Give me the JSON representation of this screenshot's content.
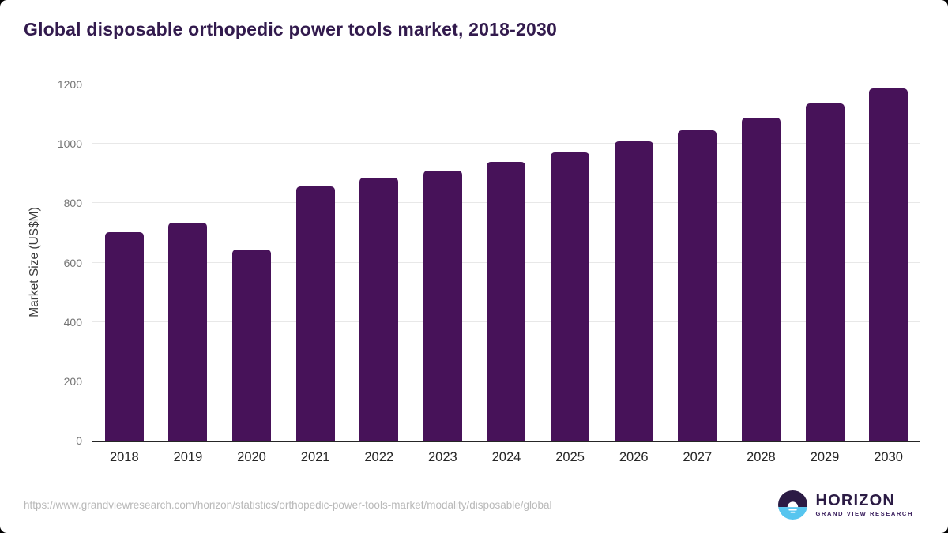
{
  "page": {
    "title": "Global disposable orthopedic power tools market, 2018-2030"
  },
  "chart_data": {
    "type": "bar",
    "title": "Global disposable orthopedic power tools market, 2018-2030",
    "categories": [
      "2018",
      "2019",
      "2020",
      "2021",
      "2022",
      "2023",
      "2024",
      "2025",
      "2026",
      "2027",
      "2028",
      "2029",
      "2030"
    ],
    "values": [
      703,
      735,
      645,
      857,
      886,
      911,
      940,
      971,
      1008,
      1045,
      1088,
      1135,
      1188
    ],
    "xlabel": "",
    "ylabel": "Market Size (US$M)",
    "ylim": [
      0,
      1200
    ],
    "yticks": [
      0,
      200,
      400,
      600,
      800,
      1000,
      1200
    ],
    "grid": true,
    "legend_position": "none",
    "bar_color": "#471259"
  },
  "footer": {
    "source_url": "https://www.grandviewresearch.com/horizon/statistics/orthopedic-power-tools-market/modality/disposable/global",
    "logo": {
      "brand_name": "HORIZON",
      "brand_subtitle": "GRAND VIEW RESEARCH"
    }
  },
  "colors": {
    "bar": "#471259",
    "title_text": "#321a4d",
    "tick_text": "#757575",
    "axis_label_text": "#3c3c3c",
    "x_label_text": "#262626",
    "gridline": "#e8e8e8",
    "axis_line": "#262626",
    "url_text": "#b9b9b9",
    "logo_dark_purple": "#2b1b44",
    "logo_light_blue": "#56c5ef"
  }
}
